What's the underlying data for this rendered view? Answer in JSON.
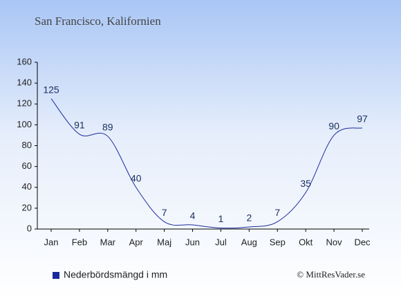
{
  "chart_data": {
    "type": "line",
    "title": "San Francisco, Kalifornien",
    "categories": [
      "Jan",
      "Feb",
      "Mar",
      "Apr",
      "Maj",
      "Jun",
      "Jul",
      "Aug",
      "Sep",
      "Okt",
      "Nov",
      "Dec"
    ],
    "series": [
      {
        "name": "Nederbördsmängd i mm",
        "color": "#1a2a9a",
        "values": [
          125,
          91,
          89,
          40,
          7,
          4,
          1,
          2,
          7,
          35,
          90,
          97
        ]
      }
    ],
    "ylim": [
      0,
      160
    ],
    "yticks": [
      0,
      20,
      40,
      60,
      80,
      100,
      120,
      140,
      160
    ],
    "source": "© MittResVader.se"
  }
}
